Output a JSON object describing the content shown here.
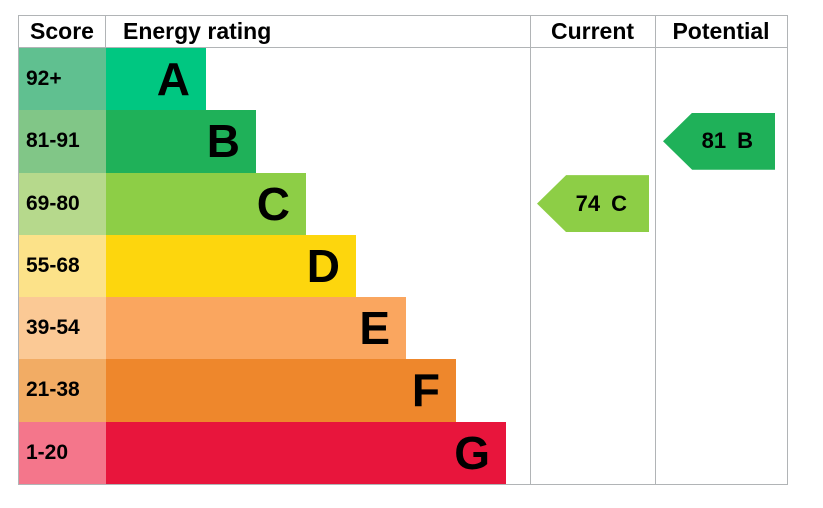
{
  "header": {
    "score": "Score",
    "energy_rating": "Energy rating",
    "current": "Current",
    "potential": "Potential"
  },
  "chart_data": {
    "type": "bar",
    "subtype": "epc-energy-rating-chart",
    "orientation": "horizontal",
    "columns": [
      "Score",
      "Energy rating",
      "Current",
      "Potential"
    ],
    "bands": [
      {
        "grade": "A",
        "score_range": "92+",
        "bar_color": "#00c781",
        "score_cell_color": "#60c090"
      },
      {
        "grade": "B",
        "score_range": "81-91",
        "bar_color": "#1fb159",
        "score_cell_color": "#81c687"
      },
      {
        "grade": "C",
        "score_range": "69-80",
        "bar_color": "#8dce46",
        "score_cell_color": "#b6d98c"
      },
      {
        "grade": "D",
        "score_range": "55-68",
        "bar_color": "#fdd60d",
        "score_cell_color": "#fce289"
      },
      {
        "grade": "E",
        "score_range": "39-54",
        "bar_color": "#faa65f",
        "score_cell_color": "#fbc995"
      },
      {
        "grade": "F",
        "score_range": "21-38",
        "bar_color": "#ee872c",
        "score_cell_color": "#f2ac64"
      },
      {
        "grade": "G",
        "score_range": "1-20",
        "bar_color": "#e8153c",
        "score_cell_color": "#f4768b"
      }
    ],
    "current": {
      "score": "74",
      "grade": "C"
    },
    "potential": {
      "score": "81",
      "grade": "B"
    },
    "layout": {
      "legend": false,
      "grid": false,
      "bar_step_direction": "longer-toward-G"
    }
  },
  "colors": {
    "border": "#b1b4b6",
    "text": "#000000",
    "background": "#ffffff"
  }
}
